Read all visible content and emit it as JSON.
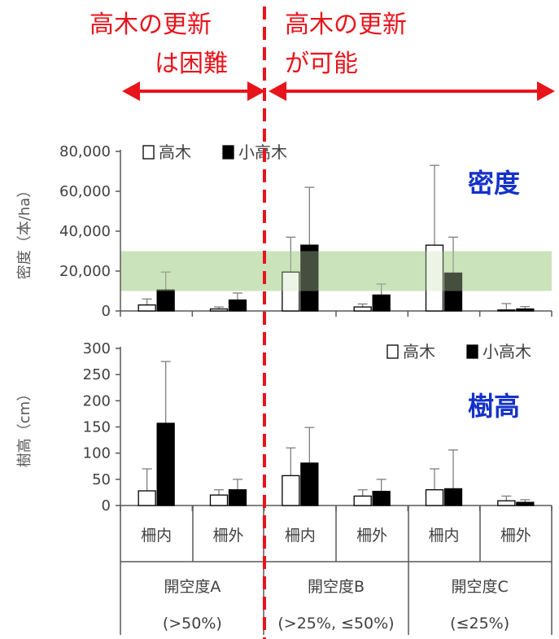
{
  "annotations": {
    "left_line1": "高木の更新",
    "left_line2": "は困難",
    "right_line1": "高木の更新",
    "right_line2": "が可能"
  },
  "colors": {
    "annotation": "#e8141c",
    "title": "#1432c8",
    "band": "#c6e0b4",
    "open_bar": "#ffffff",
    "filled_bar": "#000000",
    "axis": "#595959"
  },
  "chart_data": [
    {
      "type": "bar",
      "title": "密度",
      "ylabel": "密度（本/ha）",
      "ylim": [
        0,
        80000
      ],
      "yticks": [
        "0",
        "20,000",
        "40,000",
        "60,000",
        "80,000"
      ],
      "band": [
        10000,
        30000
      ],
      "legend_position": "top-left",
      "categories": [
        "柵内",
        "柵外",
        "柵内",
        "柵外",
        "柵内",
        "柵外"
      ],
      "series": [
        {
          "name": "高木",
          "values": [
            3000,
            1000,
            19500,
            2000,
            33000,
            500
          ],
          "errors": [
            3000,
            1000,
            17500,
            1500,
            40000,
            3200
          ]
        },
        {
          "name": "小高木",
          "values": [
            10500,
            5500,
            33000,
            8000,
            19000,
            1000
          ],
          "errors": [
            9000,
            3500,
            29000,
            5500,
            18000,
            1200
          ]
        }
      ]
    },
    {
      "type": "bar",
      "title": "樹高",
      "ylabel": "樹高（cm）",
      "ylim": [
        0,
        300
      ],
      "yticks": [
        "0",
        "50",
        "100",
        "150",
        "200",
        "250",
        "300"
      ],
      "legend_position": "top-right",
      "categories": [
        "柵内",
        "柵外",
        "柵内",
        "柵外",
        "柵内",
        "柵外"
      ],
      "series": [
        {
          "name": "高木",
          "values": [
            28,
            20,
            57,
            18,
            30,
            9
          ],
          "errors": [
            42,
            10,
            53,
            12,
            40,
            9
          ]
        },
        {
          "name": "小高木",
          "values": [
            157,
            30,
            81,
            27,
            32,
            6
          ],
          "errors": [
            118,
            20,
            68,
            23,
            74,
            5
          ]
        }
      ]
    }
  ],
  "groups": [
    {
      "label": "開空度A",
      "sub": "(>50%)"
    },
    {
      "label": "開空度B",
      "sub": "(>25%, ≤50%)"
    },
    {
      "label": "開空度C",
      "sub": "(≤25%)"
    }
  ]
}
